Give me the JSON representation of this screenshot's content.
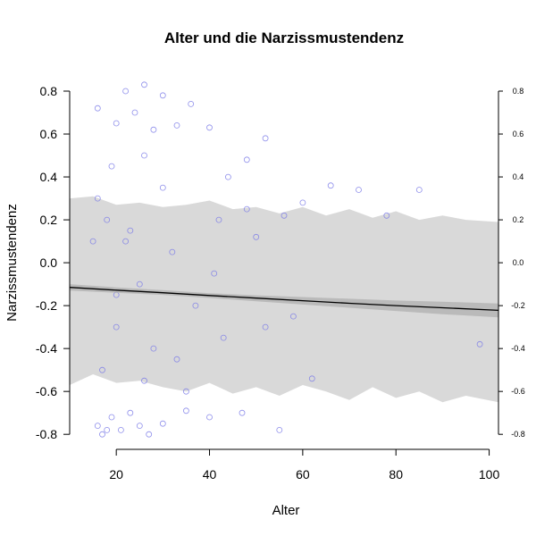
{
  "chart_data": {
    "type": "scatter",
    "title": "Alter und die Narzissmustendenz",
    "xlabel": "Alter",
    "ylabel": "Narzissmustendenz",
    "xlim": [
      10,
      102
    ],
    "ylim": [
      -0.87,
      0.9
    ],
    "x_ticks": [
      20,
      40,
      60,
      80,
      100
    ],
    "y_ticks": [
      -0.8,
      -0.6,
      -0.4,
      -0.2,
      0.0,
      0.2,
      0.4,
      0.6,
      0.8
    ],
    "x_tick_labels": [
      "20",
      "40",
      "60",
      "80",
      "100"
    ],
    "y_tick_labels": [
      "-0.8",
      "-0.6",
      "-0.4",
      "-0.2",
      "0.0",
      "0.2",
      "0.4",
      "0.6",
      "0.8"
    ],
    "right_axis_tick_labels": [
      "-0.8",
      "-0.6",
      "-0.4",
      "-0.2",
      "0.0",
      "0.2",
      "0.4",
      "0.6",
      "0.8"
    ],
    "grid": false,
    "point_color": "#7b7be8",
    "points": {
      "x": [
        16,
        18,
        20,
        22,
        24,
        26,
        28,
        30,
        33,
        36,
        40,
        44,
        48,
        52,
        56,
        60,
        66,
        72,
        78,
        85,
        98,
        16,
        17,
        19,
        21,
        23,
        25,
        27,
        30,
        35,
        40,
        47,
        55,
        62,
        16,
        18,
        20,
        22,
        25,
        28,
        32,
        37,
        43,
        50,
        58,
        17,
        19,
        23,
        26,
        30,
        35,
        41,
        48,
        15,
        20,
        26,
        33,
        42,
        52
      ],
      "y": [
        0.72,
        -0.78,
        0.65,
        0.8,
        0.7,
        0.83,
        0.62,
        0.78,
        0.64,
        0.74,
        0.63,
        0.4,
        0.48,
        0.58,
        0.22,
        0.28,
        0.36,
        0.34,
        0.22,
        0.34,
        -0.38,
        -0.76,
        -0.8,
        -0.72,
        -0.78,
        -0.7,
        -0.76,
        -0.8,
        -0.75,
        -0.69,
        -0.72,
        -0.7,
        -0.78,
        -0.54,
        0.3,
        0.2,
        -0.3,
        0.1,
        -0.1,
        -0.4,
        0.05,
        -0.2,
        -0.35,
        0.12,
        -0.25,
        -0.5,
        0.45,
        0.15,
        -0.55,
        0.35,
        -0.6,
        -0.05,
        0.25,
        0.1,
        -0.15,
        0.5,
        -0.45,
        0.2,
        -0.3
      ]
    },
    "smooth_line": {
      "x": [
        10,
        20,
        30,
        40,
        50,
        60,
        70,
        80,
        90,
        102
      ],
      "y": [
        -0.115,
        -0.128,
        -0.14,
        -0.153,
        -0.165,
        -0.177,
        -0.189,
        -0.2,
        -0.21,
        -0.222
      ]
    },
    "confidence_band": {
      "x": [
        10,
        20,
        30,
        40,
        50,
        60,
        70,
        80,
        90,
        102
      ],
      "lower": [
        -0.13,
        -0.14,
        -0.15,
        -0.164,
        -0.18,
        -0.195,
        -0.21,
        -0.225,
        -0.24,
        -0.255
      ],
      "upper": [
        -0.1,
        -0.115,
        -0.128,
        -0.142,
        -0.152,
        -0.16,
        -0.168,
        -0.176,
        -0.182,
        -0.19
      ]
    },
    "prediction_band": {
      "x": [
        10,
        15,
        20,
        25,
        30,
        35,
        40,
        45,
        50,
        55,
        60,
        65,
        70,
        75,
        80,
        85,
        90,
        95,
        102
      ],
      "lower": [
        -0.57,
        -0.52,
        -0.56,
        -0.55,
        -0.58,
        -0.6,
        -0.56,
        -0.61,
        -0.58,
        -0.62,
        -0.57,
        -0.6,
        -0.64,
        -0.58,
        -0.63,
        -0.6,
        -0.65,
        -0.62,
        -0.65
      ],
      "upper": [
        0.3,
        0.31,
        0.27,
        0.28,
        0.26,
        0.27,
        0.29,
        0.25,
        0.26,
        0.23,
        0.26,
        0.22,
        0.25,
        0.21,
        0.24,
        0.2,
        0.22,
        0.2,
        0.19
      ]
    }
  }
}
